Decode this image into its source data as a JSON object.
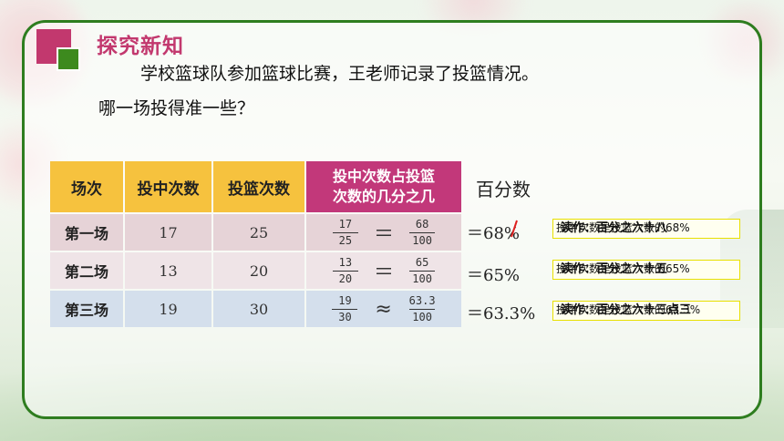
{
  "title": "探究新知",
  "question_line1": "学校篮球队参加篮球比赛，王老师记录了投篮情况。",
  "question_line2": "哪一场投得准一些？",
  "table": {
    "headers": [
      "场次",
      "投中次数",
      "投篮次数",
      "投中次数占投篮次数的几分之几"
    ],
    "header_last_line1": "投中次数占投篮",
    "header_last_line2": "次数的几分之几",
    "rows": [
      {
        "label": "第一场",
        "hits": "17",
        "shots": "25",
        "num": "17",
        "den": "25",
        "rel": "＝",
        "num2": "68",
        "den2": "100"
      },
      {
        "label": "第二场",
        "hits": "13",
        "shots": "20",
        "num": "13",
        "den": "20",
        "rel": "＝",
        "num2": "65",
        "den2": "100"
      },
      {
        "label": "第三场",
        "hits": "19",
        "shots": "30",
        "num": "19",
        "den": "30",
        "rel": "≈",
        "num2": "63.3",
        "den2": "100"
      }
    ]
  },
  "percent_header": "百分数",
  "percents": [
    "＝68%",
    "＝65%",
    "＝63.3%"
  ],
  "notes": [
    {
      "under": "投中次数是投篮次数的68%",
      "over": "读作：百分之六十八"
    },
    {
      "under": "投中次数是投篮次数的65%",
      "over": "读作：百分之六十五"
    },
    {
      "under": "投中次数是投篮次数的63.3%",
      "over": "读作：百分之六十三点三"
    }
  ],
  "colors": {
    "accent_pink": "#c2386e",
    "frame_green": "#2e7d1f",
    "header_yellow": "#f6c23e",
    "header_pink": "#c2387a"
  }
}
